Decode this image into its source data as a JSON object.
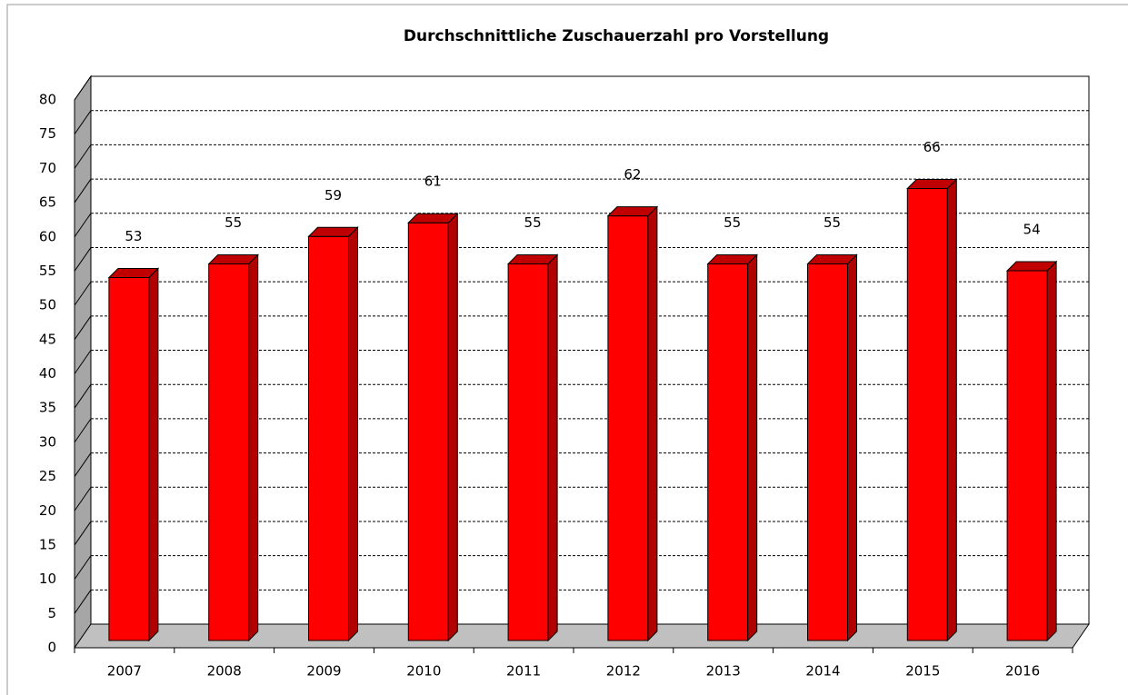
{
  "chart_data": {
    "type": "bar",
    "title": "Durchschnittliche Zuschauerzahl pro Vorstellung",
    "categories": [
      "2007",
      "2008",
      "2009",
      "2010",
      "2011",
      "2012",
      "2013",
      "2014",
      "2015",
      "2016"
    ],
    "values": [
      53,
      55,
      59,
      61,
      55,
      62,
      55,
      55,
      66,
      54
    ],
    "color": "#ff0000",
    "ylim": [
      0,
      80
    ],
    "yticks": [
      0,
      5,
      10,
      15,
      20,
      25,
      30,
      35,
      40,
      45,
      50,
      55,
      60,
      65,
      70,
      75,
      80
    ],
    "grid": true
  }
}
